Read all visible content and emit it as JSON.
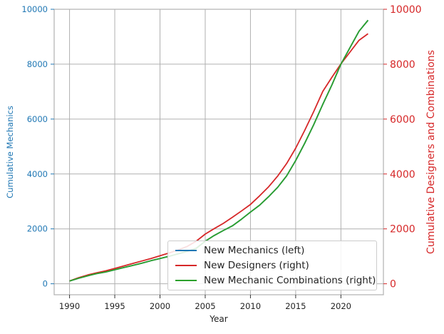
{
  "chart_data": {
    "type": "line",
    "xlabel": "Year",
    "ylabel_left": "Cumulative Mechanics",
    "ylabel_right": "Cumulative Designers and Combinations",
    "xlim": [
      1988.3,
      2024.7
    ],
    "ylim_left": [
      -400,
      10000
    ],
    "ylim_right": [
      -400,
      10000
    ],
    "x_ticks": [
      1990,
      1995,
      2000,
      2005,
      2010,
      2015,
      2020
    ],
    "y_ticks_left": [
      0,
      2000,
      4000,
      6000,
      8000,
      10000
    ],
    "y_ticks_right": [
      0,
      2000,
      4000,
      6000,
      8000,
      10000
    ],
    "grid": true,
    "legend_position": "lower-right",
    "x": [
      1990,
      1991,
      1992,
      1993,
      1994,
      1995,
      1996,
      1997,
      1998,
      1999,
      2000,
      2001,
      2002,
      2003,
      2004,
      2005,
      2006,
      2007,
      2008,
      2009,
      2010,
      2011,
      2012,
      2013,
      2014,
      2015,
      2016,
      2017,
      2018,
      2019,
      2020,
      2021,
      2022,
      2023
    ],
    "series": [
      {
        "name": "New Mechanics (left)",
        "axis": "left",
        "color": "#1f77b4",
        "values": [
          100,
          200,
          290,
          370,
          430,
          510,
          590,
          670,
          750,
          840,
          920,
          1000,
          1090,
          1180,
          1290,
          1550,
          1760,
          1940,
          2110,
          2350,
          2610,
          2860,
          3170,
          3510,
          3930,
          4490,
          5120,
          5800,
          6540,
          7240,
          8000,
          8600,
          9200,
          9600
        ]
      },
      {
        "name": "New Designers (right)",
        "axis": "right",
        "color": "#d62728",
        "values": [
          100,
          220,
          320,
          400,
          470,
          560,
          650,
          740,
          830,
          920,
          1020,
          1120,
          1230,
          1360,
          1550,
          1810,
          2010,
          2200,
          2420,
          2650,
          2890,
          3200,
          3530,
          3920,
          4380,
          4940,
          5590,
          6280,
          7010,
          7520,
          8010,
          8440,
          8870,
          9110
        ]
      },
      {
        "name": "New Mechanic Combinations (right)",
        "axis": "right",
        "color": "#2ca02c",
        "values": [
          100,
          200,
          290,
          370,
          430,
          510,
          590,
          670,
          750,
          840,
          920,
          1000,
          1090,
          1180,
          1290,
          1550,
          1760,
          1940,
          2110,
          2350,
          2610,
          2860,
          3170,
          3510,
          3930,
          4490,
          5120,
          5800,
          6540,
          7240,
          8000,
          8600,
          9200,
          9600
        ]
      }
    ],
    "colors": {
      "left_axis": "#1f77b4",
      "right_axis": "#d62728",
      "grid": "#b0b0b0",
      "spine": "#b0b0b0"
    }
  }
}
